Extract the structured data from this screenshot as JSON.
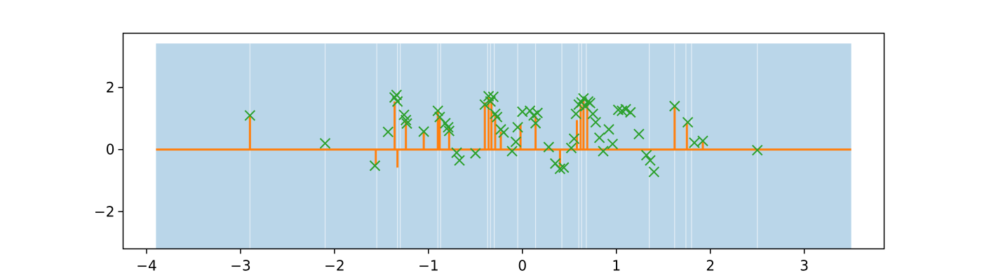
{
  "chart_data": {
    "type": "line",
    "title": "",
    "xlabel": "",
    "ylabel": "",
    "xlim": [
      -4.25,
      3.85
    ],
    "ylim": [
      -3.2,
      3.75
    ],
    "grid": false,
    "xticks": [
      {
        "value": -4,
        "label": "−4"
      },
      {
        "value": -3,
        "label": "−3"
      },
      {
        "value": -2,
        "label": "−2"
      },
      {
        "value": -1,
        "label": "−1"
      },
      {
        "value": 0,
        "label": "0"
      },
      {
        "value": 1,
        "label": "1"
      },
      {
        "value": 2,
        "label": "2"
      },
      {
        "value": 3,
        "label": "3"
      }
    ],
    "yticks": [
      {
        "value": -2,
        "label": "−2"
      },
      {
        "value": 0,
        "label": "0"
      },
      {
        "value": 2,
        "label": "2"
      }
    ],
    "band": {
      "x_range": [
        -3.9,
        3.5
      ],
      "y_range": [
        -3.2,
        3.42
      ],
      "color": "#bad6e9",
      "gap_x": [
        -2.9,
        -2.1,
        -1.55,
        -1.33,
        -1.3,
        -0.9,
        -0.87,
        -0.37,
        -0.34,
        -0.3,
        -0.05,
        0.14,
        0.42,
        0.6,
        0.63,
        0.68,
        1.35,
        1.62,
        1.74,
        1.8,
        2.5
      ]
    },
    "series": [
      {
        "color": "#ff7f0e",
        "baseline": 0,
        "spikes": [
          {
            "x": -2.9,
            "y": 1.08
          },
          {
            "x": -1.56,
            "y": -0.5
          },
          {
            "x": -1.36,
            "y": 1.55
          },
          {
            "x": -1.33,
            "y": -0.58
          },
          {
            "x": -1.24,
            "y": 0.92
          },
          {
            "x": -1.05,
            "y": 0.58
          },
          {
            "x": -0.9,
            "y": 1.28
          },
          {
            "x": -0.88,
            "y": 1.05
          },
          {
            "x": -0.78,
            "y": 0.72
          },
          {
            "x": -0.4,
            "y": 1.52
          },
          {
            "x": -0.36,
            "y": 1.7
          },
          {
            "x": -0.33,
            "y": 1.55
          },
          {
            "x": -0.29,
            "y": 1.1
          },
          {
            "x": -0.23,
            "y": 0.58
          },
          {
            "x": -0.02,
            "y": 0.82
          },
          {
            "x": 0.14,
            "y": 1.08
          },
          {
            "x": 0.4,
            "y": -0.55
          },
          {
            "x": 0.58,
            "y": 0.95
          },
          {
            "x": 0.62,
            "y": 1.45
          },
          {
            "x": 0.65,
            "y": 1.62
          },
          {
            "x": 0.69,
            "y": 1.5
          },
          {
            "x": 1.62,
            "y": 1.38
          },
          {
            "x": 1.75,
            "y": 0.88
          },
          {
            "x": 1.92,
            "y": 0.28
          }
        ]
      },
      {
        "color": "#2ca02c",
        "marker": "x",
        "points": [
          {
            "x": -2.9,
            "y": 1.1
          },
          {
            "x": -2.1,
            "y": 0.2
          },
          {
            "x": -1.57,
            "y": -0.52
          },
          {
            "x": -1.43,
            "y": 0.57
          },
          {
            "x": -1.36,
            "y": 1.68
          },
          {
            "x": -1.34,
            "y": 1.76
          },
          {
            "x": -1.33,
            "y": 1.55
          },
          {
            "x": -1.26,
            "y": 1.12
          },
          {
            "x": -1.24,
            "y": 0.95
          },
          {
            "x": -1.23,
            "y": 0.84
          },
          {
            "x": -1.05,
            "y": 0.58
          },
          {
            "x": -0.9,
            "y": 1.25
          },
          {
            "x": -0.88,
            "y": 1.05
          },
          {
            "x": -0.82,
            "y": 0.85
          },
          {
            "x": -0.79,
            "y": 0.72
          },
          {
            "x": -0.78,
            "y": 0.6
          },
          {
            "x": -0.7,
            "y": -0.1
          },
          {
            "x": -0.67,
            "y": -0.35
          },
          {
            "x": -0.5,
            "y": -0.12
          },
          {
            "x": -0.4,
            "y": 1.45
          },
          {
            "x": -0.36,
            "y": 1.72
          },
          {
            "x": -0.34,
            "y": 1.55
          },
          {
            "x": -0.31,
            "y": 1.7
          },
          {
            "x": -0.29,
            "y": 1.15
          },
          {
            "x": -0.27,
            "y": 1.05
          },
          {
            "x": -0.23,
            "y": 0.65
          },
          {
            "x": -0.2,
            "y": 0.55
          },
          {
            "x": -0.11,
            "y": -0.05
          },
          {
            "x": -0.07,
            "y": 0.25
          },
          {
            "x": -0.05,
            "y": 0.72
          },
          {
            "x": 0.0,
            "y": 1.22
          },
          {
            "x": 0.08,
            "y": 1.25
          },
          {
            "x": 0.12,
            "y": 1.1
          },
          {
            "x": 0.14,
            "y": 0.85
          },
          {
            "x": 0.16,
            "y": 1.18
          },
          {
            "x": 0.28,
            "y": 0.08
          },
          {
            "x": 0.35,
            "y": -0.45
          },
          {
            "x": 0.4,
            "y": -0.62
          },
          {
            "x": 0.44,
            "y": -0.58
          },
          {
            "x": 0.52,
            "y": 0.05
          },
          {
            "x": 0.55,
            "y": 0.35
          },
          {
            "x": 0.57,
            "y": 1.15
          },
          {
            "x": 0.6,
            "y": 1.45
          },
          {
            "x": 0.63,
            "y": 1.52
          },
          {
            "x": 0.65,
            "y": 1.65
          },
          {
            "x": 0.67,
            "y": 1.4
          },
          {
            "x": 0.7,
            "y": 1.55
          },
          {
            "x": 0.72,
            "y": 1.5
          },
          {
            "x": 0.75,
            "y": 1.15
          },
          {
            "x": 0.78,
            "y": 0.88
          },
          {
            "x": 0.82,
            "y": 0.38
          },
          {
            "x": 0.86,
            "y": -0.05
          },
          {
            "x": 0.92,
            "y": 0.65
          },
          {
            "x": 0.96,
            "y": 0.18
          },
          {
            "x": 1.02,
            "y": 1.28
          },
          {
            "x": 1.06,
            "y": 1.25
          },
          {
            "x": 1.1,
            "y": 1.3
          },
          {
            "x": 1.15,
            "y": 1.2
          },
          {
            "x": 1.24,
            "y": 0.5
          },
          {
            "x": 1.32,
            "y": -0.18
          },
          {
            "x": 1.36,
            "y": -0.35
          },
          {
            "x": 1.4,
            "y": -0.72
          },
          {
            "x": 1.62,
            "y": 1.4
          },
          {
            "x": 1.76,
            "y": 0.88
          },
          {
            "x": 1.83,
            "y": 0.22
          },
          {
            "x": 1.92,
            "y": 0.28
          },
          {
            "x": 2.5,
            "y": -0.02
          }
        ]
      }
    ]
  }
}
